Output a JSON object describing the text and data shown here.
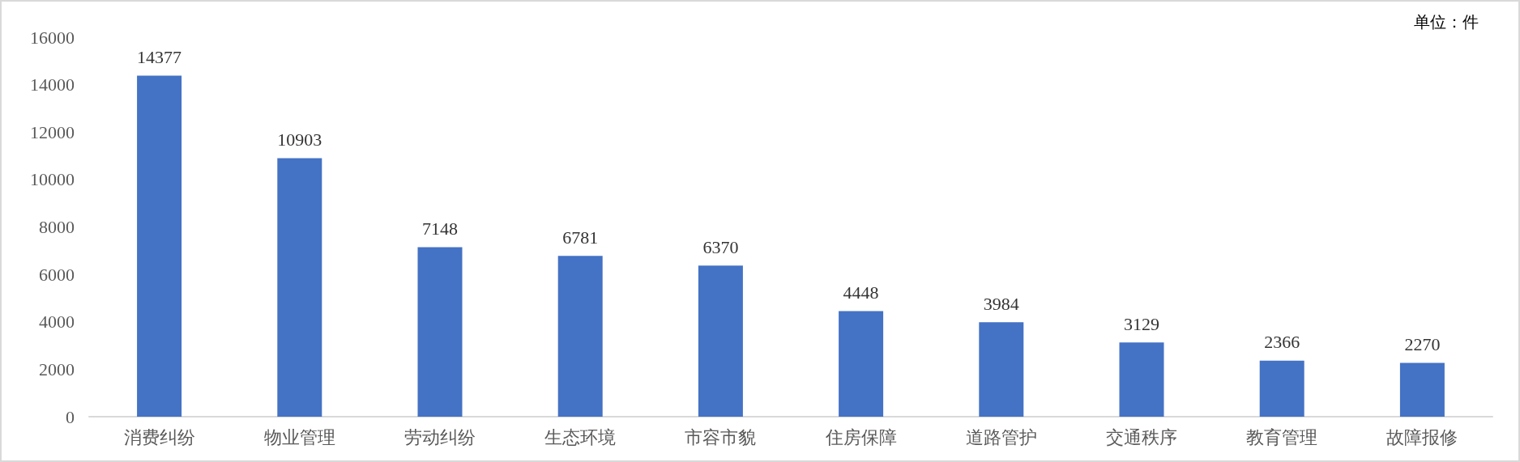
{
  "chart_data": {
    "type": "bar",
    "annotations": [
      "单位：件"
    ],
    "categories": [
      "消费纠纷",
      "物业管理",
      "劳动纠纷",
      "生态环境",
      "市容市貌",
      "住房保障",
      "道路管护",
      "交通秩序",
      "教育管理",
      "故障报修"
    ],
    "values": [
      14377,
      10903,
      7148,
      6781,
      6370,
      4448,
      3984,
      3129,
      2366,
      2270
    ],
    "color": "#4472c4",
    "ylim": [
      0,
      16000
    ],
    "yticks": [
      0,
      2000,
      4000,
      6000,
      8000,
      10000,
      12000,
      14000,
      16000
    ],
    "grid": false,
    "data_labels": true
  }
}
